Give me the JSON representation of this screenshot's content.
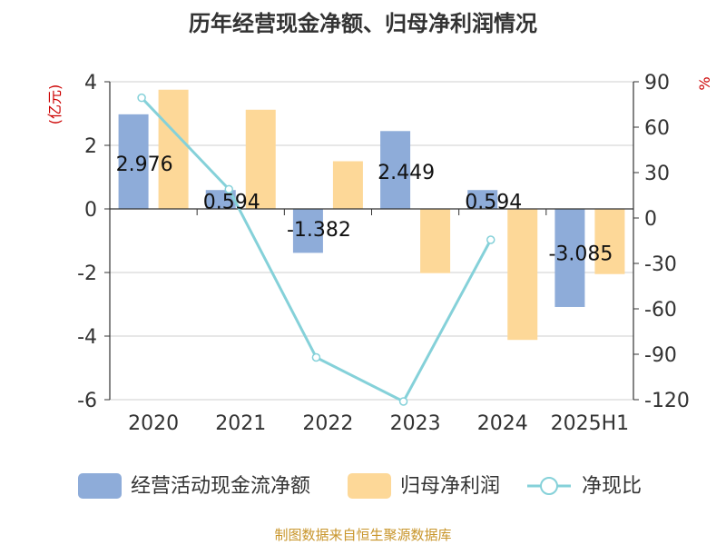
{
  "chart_data": {
    "type": "bar",
    "title": "历年经营现金净额、归母净利润情况",
    "categories": [
      "2020",
      "2021",
      "2022",
      "2023",
      "2024",
      "2025H1"
    ],
    "y_left": {
      "unit": "(亿元)",
      "range": [
        -6,
        4
      ],
      "ticks": [
        4,
        2,
        0,
        -2,
        -4,
        -6
      ]
    },
    "y_right": {
      "unit": "%",
      "range": [
        -120,
        90
      ],
      "ticks": [
        90,
        60,
        30,
        0,
        -30,
        -60,
        -90,
        -120
      ]
    },
    "grid": true,
    "legend_position": "bottom",
    "series": [
      {
        "name": "经营活动现金流净额",
        "type": "bar",
        "axis": "left",
        "color": "#8eacd9",
        "values": [
          2.976,
          0.594,
          -1.382,
          2.449,
          0.594,
          -3.085
        ],
        "labels": [
          "2.976",
          "0.594",
          "-1.382",
          "2.449",
          "0.594",
          "-3.085"
        ]
      },
      {
        "name": "归母净利润",
        "type": "bar",
        "axis": "left",
        "color": "#fdd898",
        "values": [
          3.75,
          3.12,
          1.5,
          -2.02,
          -4.12,
          -2.05
        ]
      },
      {
        "name": "净现比",
        "type": "line",
        "axis": "right",
        "color": "#85d1d9",
        "values": [
          79.4,
          19.0,
          -92.1,
          -121.2,
          -14.4,
          null
        ]
      }
    ]
  },
  "source": "制图数据来自恒生聚源数据库"
}
